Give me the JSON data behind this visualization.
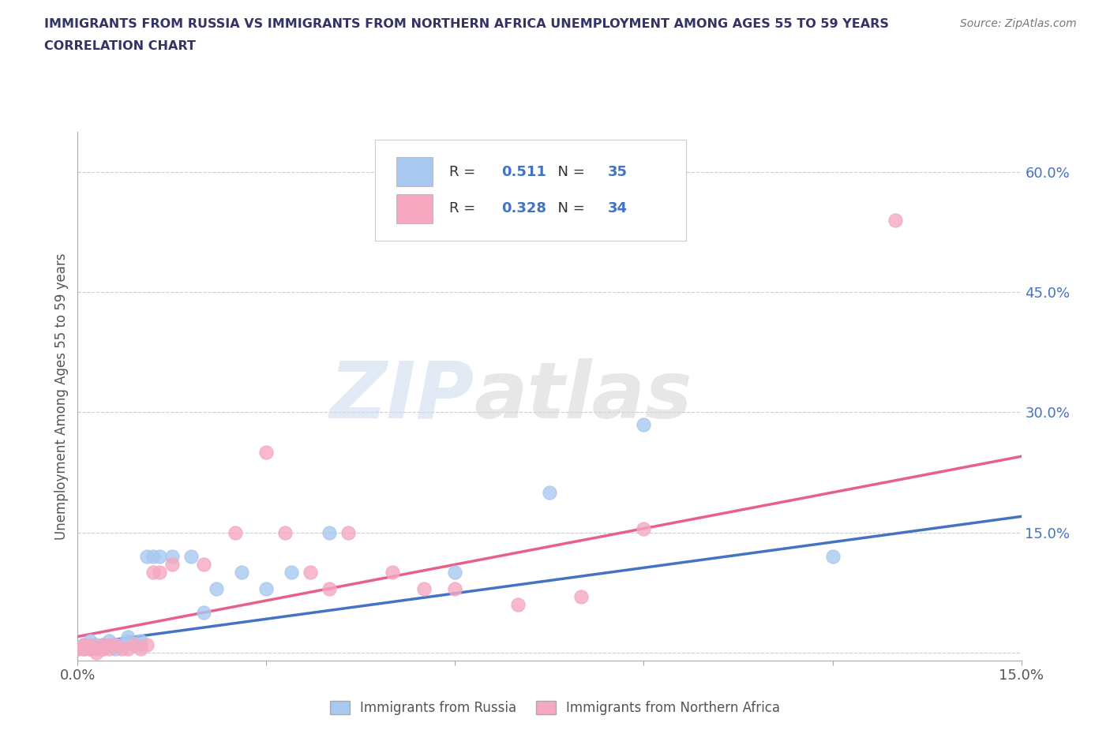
{
  "title_line1": "IMMIGRANTS FROM RUSSIA VS IMMIGRANTS FROM NORTHERN AFRICA UNEMPLOYMENT AMONG AGES 55 TO 59 YEARS",
  "title_line2": "CORRELATION CHART",
  "source": "Source: ZipAtlas.com",
  "ylabel": "Unemployment Among Ages 55 to 59 years",
  "xlim": [
    0.0,
    0.15
  ],
  "ylim": [
    -0.01,
    0.65
  ],
  "xticks": [
    0.0,
    0.03,
    0.06,
    0.09,
    0.12,
    0.15
  ],
  "ytick_positions": [
    0.0,
    0.15,
    0.3,
    0.45,
    0.6
  ],
  "ytick_labels": [
    "",
    "15.0%",
    "30.0%",
    "45.0%",
    "60.0%"
  ],
  "russia_R": 0.511,
  "russia_N": 35,
  "nafrica_R": 0.328,
  "nafrica_N": 34,
  "russia_color": "#a8c8f0",
  "nafrica_color": "#f5a8c0",
  "russia_line_color": "#4472c4",
  "nafrica_line_color": "#e8608a",
  "background_color": "#ffffff",
  "russia_x": [
    0.0,
    0.001,
    0.001,
    0.002,
    0.002,
    0.003,
    0.003,
    0.004,
    0.004,
    0.005,
    0.005,
    0.006,
    0.006,
    0.007,
    0.007,
    0.008,
    0.008,
    0.009,
    0.01,
    0.01,
    0.011,
    0.012,
    0.013,
    0.015,
    0.018,
    0.02,
    0.022,
    0.026,
    0.03,
    0.034,
    0.04,
    0.06,
    0.075,
    0.09,
    0.12
  ],
  "russia_y": [
    0.005,
    0.005,
    0.01,
    0.005,
    0.015,
    0.005,
    0.01,
    0.01,
    0.005,
    0.01,
    0.015,
    0.005,
    0.01,
    0.01,
    0.01,
    0.015,
    0.02,
    0.01,
    0.015,
    0.01,
    0.12,
    0.12,
    0.12,
    0.12,
    0.12,
    0.05,
    0.08,
    0.1,
    0.08,
    0.1,
    0.15,
    0.1,
    0.2,
    0.285,
    0.12
  ],
  "nafrica_x": [
    0.0,
    0.001,
    0.001,
    0.002,
    0.002,
    0.003,
    0.003,
    0.004,
    0.004,
    0.005,
    0.005,
    0.006,
    0.007,
    0.008,
    0.009,
    0.01,
    0.011,
    0.012,
    0.013,
    0.015,
    0.02,
    0.025,
    0.03,
    0.033,
    0.037,
    0.04,
    0.043,
    0.05,
    0.055,
    0.06,
    0.07,
    0.08,
    0.09,
    0.13
  ],
  "nafrica_y": [
    0.005,
    0.01,
    0.005,
    0.005,
    0.01,
    0.0,
    0.005,
    0.005,
    0.01,
    0.005,
    0.01,
    0.01,
    0.005,
    0.005,
    0.01,
    0.005,
    0.01,
    0.1,
    0.1,
    0.11,
    0.11,
    0.15,
    0.25,
    0.15,
    0.1,
    0.08,
    0.15,
    0.1,
    0.08,
    0.08,
    0.06,
    0.07,
    0.155,
    0.54
  ],
  "russia_line_x": [
    0.0,
    0.15
  ],
  "russia_line_y": [
    0.01,
    0.17
  ],
  "nafrica_line_x": [
    0.0,
    0.15
  ],
  "nafrica_line_y": [
    0.02,
    0.245
  ]
}
